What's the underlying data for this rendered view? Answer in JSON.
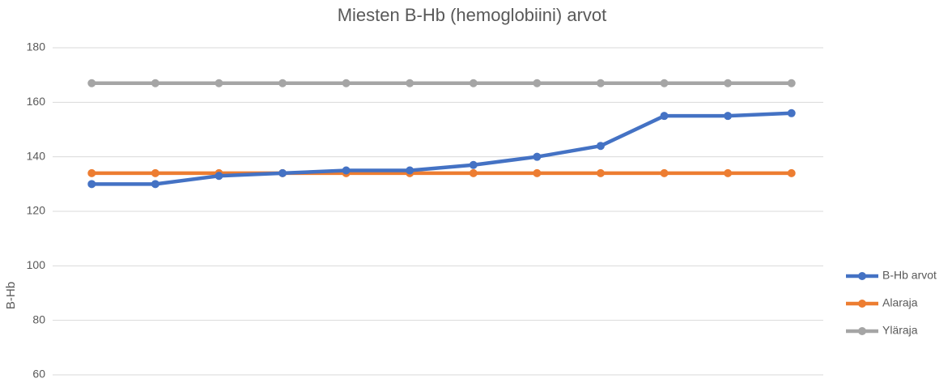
{
  "chart_data": {
    "type": "line",
    "title": "Miesten B-Hb (hemoglobiini) arvot",
    "y_label": "B-Hb",
    "categories": [
      null,
      null,
      null,
      null,
      null,
      null,
      null,
      null,
      null,
      null,
      null,
      null
    ],
    "series": [
      {
        "name": "B-Hb arvot",
        "color": "#4472c4",
        "values": [
          130,
          130,
          133,
          134,
          135,
          135,
          137,
          140,
          144,
          155,
          155,
          156
        ]
      },
      {
        "name": "Alaraja",
        "color": "#ed7d31",
        "values": [
          134,
          134,
          134,
          134,
          134,
          134,
          134,
          134,
          134,
          134,
          134,
          134
        ]
      },
      {
        "name": "Yläraja",
        "color": "#a5a5a5",
        "values": [
          167,
          167,
          167,
          167,
          167,
          167,
          167,
          167,
          167,
          167,
          167,
          167
        ]
      }
    ],
    "ylim": [
      60,
      180
    ],
    "yticks": [
      60,
      80,
      100,
      120,
      140,
      160,
      180
    ],
    "grid": true,
    "legend": "right"
  }
}
